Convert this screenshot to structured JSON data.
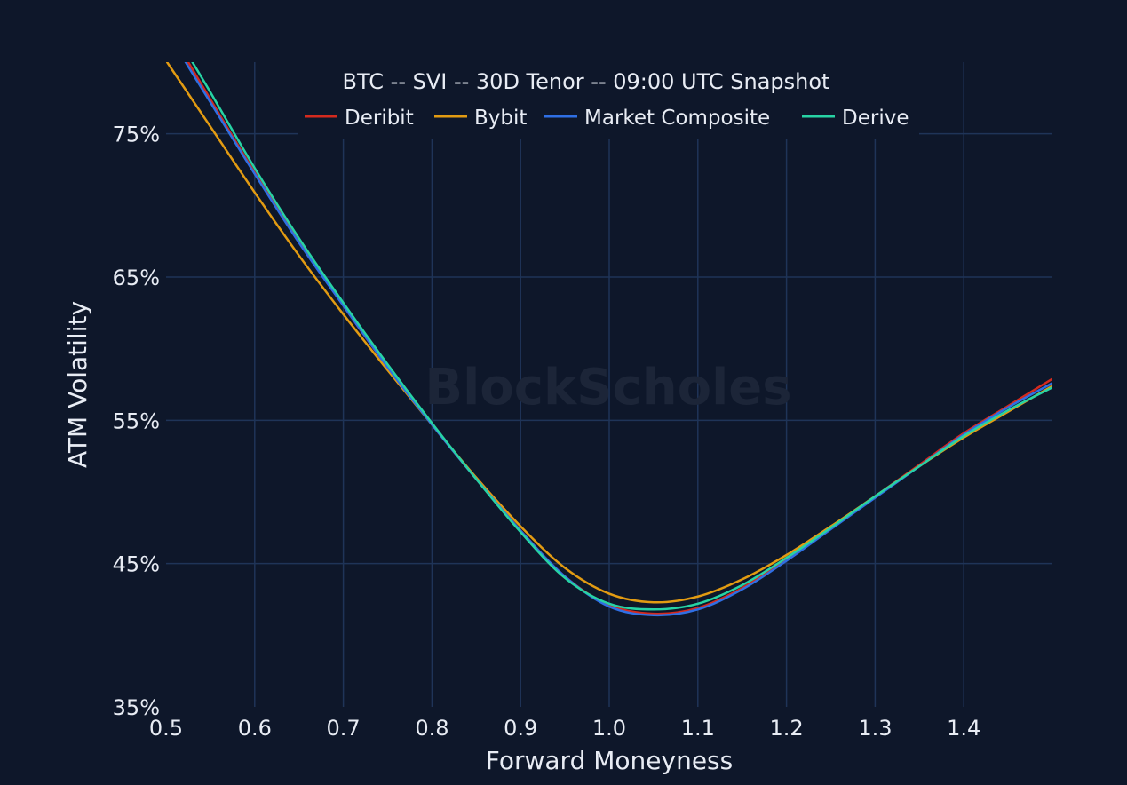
{
  "colors": {
    "background": "#0e172a",
    "grid": "#1f3458",
    "text": "#e8ecf4",
    "watermark": "#1c2538"
  },
  "watermark": "BlockScholes",
  "chart_data": {
    "type": "line",
    "title": "BTC -- SVI -- 30D Tenor -- 09:00 UTC Snapshot",
    "xlabel": "Forward Moneyness",
    "ylabel": "ATM Volatility",
    "xlim": [
      0.5,
      1.5
    ],
    "ylim": [
      35,
      80
    ],
    "xticks": [
      0.5,
      0.6,
      0.7,
      0.8,
      0.9,
      1.0,
      1.1,
      1.2,
      1.3,
      1.4
    ],
    "xtick_labels": [
      "0.5",
      "0.6",
      "0.7",
      "0.8",
      "0.9",
      "1.0",
      "1.1",
      "1.2",
      "1.3",
      "1.4"
    ],
    "yticks": [
      35,
      45,
      55,
      65,
      75
    ],
    "ytick_labels": [
      "35%",
      "45%",
      "55%",
      "65%",
      "75%"
    ],
    "grid": true,
    "legend_position": "top",
    "x": [
      0.5,
      0.525,
      0.55,
      0.6,
      0.65,
      0.7,
      0.75,
      0.8,
      0.85,
      0.9,
      0.95,
      1.0,
      1.05,
      1.1,
      1.15,
      1.2,
      1.25,
      1.3,
      1.35,
      1.4,
      1.45,
      1.5
    ],
    "series": [
      {
        "name": "Deribit",
        "color": "#d42a1e",
        "values": [
          82.6,
          80.0,
          77.4,
          72.3,
          67.5,
          63.0,
          58.7,
          54.7,
          50.9,
          47.3,
          44.1,
          42.1,
          41.5,
          41.9,
          43.3,
          45.3,
          47.5,
          49.7,
          51.9,
          54.1,
          56.0,
          57.9
        ]
      },
      {
        "name": "Bybit",
        "color": "#e29b12",
        "values": [
          80.1,
          77.8,
          75.5,
          70.9,
          66.5,
          62.4,
          58.5,
          54.7,
          51.0,
          47.6,
          44.7,
          42.9,
          42.3,
          42.7,
          43.9,
          45.6,
          47.6,
          49.7,
          51.8,
          53.8,
          55.6,
          57.4
        ]
      },
      {
        "name": "Market Composite",
        "color": "#2f6fe4",
        "values": [
          82.3,
          79.7,
          77.2,
          72.2,
          67.4,
          63.0,
          58.7,
          54.7,
          50.9,
          47.3,
          44.1,
          42.0,
          41.4,
          41.8,
          43.2,
          45.2,
          47.4,
          49.6,
          51.8,
          54.0,
          55.9,
          57.6
        ]
      },
      {
        "name": "Derive",
        "color": "#27d3a4",
        "values": [
          83.2,
          80.5,
          77.9,
          72.6,
          67.7,
          63.2,
          58.9,
          54.8,
          50.9,
          47.2,
          44.0,
          42.2,
          41.8,
          42.2,
          43.5,
          45.4,
          47.5,
          49.7,
          51.8,
          53.9,
          55.7,
          57.3
        ]
      }
    ]
  }
}
